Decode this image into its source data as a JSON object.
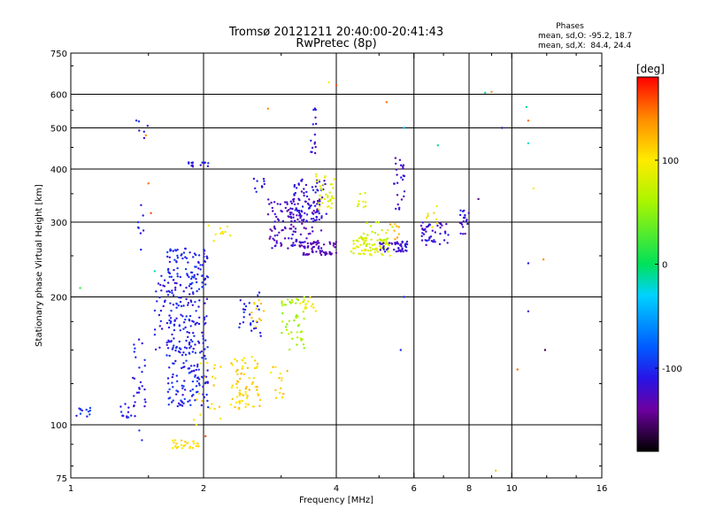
{
  "chart_data": {
    "type": "scatter",
    "title": "Tromsø 20121211 20:40:00-20:41:43",
    "subtitle": "RwPretec (8p)",
    "xlabel": "Frequency [MHz]",
    "ylabel": "Stationary phase Virtual Height [km]",
    "x_scale": "log",
    "y_scale": "log",
    "xlim": [
      1,
      16
    ],
    "ylim": [
      75,
      750
    ],
    "x_ticks": [
      {
        "value": 1,
        "label": "1"
      },
      {
        "value": 2,
        "label": "2"
      },
      {
        "value": 4,
        "label": "4"
      },
      {
        "value": 6,
        "label": "6"
      },
      {
        "value": 8,
        "label": "8"
      },
      {
        "value": 10,
        "label": "10"
      },
      {
        "value": 16,
        "label": "16"
      }
    ],
    "x_gridlines": [
      2,
      4,
      6,
      8,
      10
    ],
    "y_ticks": [
      {
        "value": 75,
        "label": "75"
      },
      {
        "value": 100,
        "label": "100"
      },
      {
        "value": 200,
        "label": "200"
      },
      {
        "value": 300,
        "label": "300"
      },
      {
        "value": 400,
        "label": "400"
      },
      {
        "value": 500,
        "label": "500"
      },
      {
        "value": 600,
        "label": "600"
      },
      {
        "value": 750,
        "label": "750"
      }
    ],
    "y_gridlines": [
      100,
      200,
      300,
      400,
      500,
      600
    ],
    "grid": true,
    "phase_stats": {
      "heading": "Phases",
      "line_o": "mean, sd,O: -95.2, 18.7",
      "line_x": "mean, sd,X:  84.4, 24.4"
    },
    "colorbar": {
      "label": "[deg]",
      "range": [
        -180,
        180
      ],
      "ticks": [
        {
          "value": 100,
          "label": "100"
        },
        {
          "value": 0,
          "label": "0"
        },
        {
          "value": -100,
          "label": "-100"
        }
      ]
    },
    "clusters": [
      {
        "x": [
          1.02,
          1.12
        ],
        "y": [
          104,
          110
        ],
        "phase": -100,
        "n": 12
      },
      {
        "x": [
          1.25,
          1.4
        ],
        "y": [
          104,
          112
        ],
        "phase": -105,
        "n": 14
      },
      {
        "x": [
          1.38,
          1.48
        ],
        "y": [
          110,
          160
        ],
        "phase": -110,
        "n": 25
      },
      {
        "x": [
          1.4,
          1.5
        ],
        "y": [
          470,
          560
        ],
        "phase": -110,
        "n": 6
      },
      {
        "x": [
          1.42,
          1.5
        ],
        "y": [
          240,
          330
        ],
        "phase": -100,
        "n": 8
      },
      {
        "x": [
          1.55,
          1.7
        ],
        "y": [
          150,
          230
        ],
        "phase": -110,
        "n": 30
      },
      {
        "x": [
          1.65,
          2.05
        ],
        "y": [
          110,
          260
        ],
        "phase": -105,
        "n": 320
      },
      {
        "x": [
          1.7,
          1.95
        ],
        "y": [
          88,
          92
        ],
        "phase": 100,
        "n": 30
      },
      {
        "x": [
          1.85,
          2.05
        ],
        "y": [
          405,
          415
        ],
        "phase": -110,
        "n": 14
      },
      {
        "x": [
          1.9,
          2.2
        ],
        "y": [
          100,
          140
        ],
        "phase": 105,
        "n": 20
      },
      {
        "x": [
          2.05,
          2.3
        ],
        "y": [
          270,
          295
        ],
        "phase": 95,
        "n": 10
      },
      {
        "x": [
          2.3,
          2.7
        ],
        "y": [
          108,
          145
        ],
        "phase": 110,
        "n": 70
      },
      {
        "x": [
          2.4,
          2.7
        ],
        "y": [
          160,
          210
        ],
        "phase": -105,
        "n": 25
      },
      {
        "x": [
          2.55,
          2.75
        ],
        "y": [
          165,
          200
        ],
        "phase": 110,
        "n": 12
      },
      {
        "x": [
          2.6,
          2.75
        ],
        "y": [
          350,
          380
        ],
        "phase": -110,
        "n": 10
      },
      {
        "x": [
          2.8,
          3.1
        ],
        "y": [
          115,
          140
        ],
        "phase": 110,
        "n": 15
      },
      {
        "x": [
          3.0,
          3.4
        ],
        "y": [
          150,
          200
        ],
        "phase": 60,
        "n": 45
      },
      {
        "x": [
          3.3,
          3.6
        ],
        "y": [
          185,
          200
        ],
        "phase": 90,
        "n": 15
      },
      {
        "x": [
          2.8,
          3.7
        ],
        "y": [
          260,
          340
        ],
        "phase": -125,
        "n": 140
      },
      {
        "x": [
          3.2,
          3.8
        ],
        "y": [
          300,
          380
        ],
        "phase": -115,
        "n": 70
      },
      {
        "x": [
          3.3,
          4.0
        ],
        "y": [
          250,
          270
        ],
        "phase": -130,
        "n": 60
      },
      {
        "x": [
          3.5,
          3.6
        ],
        "y": [
          420,
          560
        ],
        "phase": -115,
        "n": 15
      },
      {
        "x": [
          3.6,
          4.0
        ],
        "y": [
          320,
          390
        ],
        "phase": 85,
        "n": 35
      },
      {
        "x": [
          4.3,
          5.3
        ],
        "y": [
          250,
          275
        ],
        "phase": 85,
        "n": 70
      },
      {
        "x": [
          4.5,
          5.6
        ],
        "y": [
          260,
          300
        ],
        "phase": 75,
        "n": 30
      },
      {
        "x": [
          5.0,
          5.9
        ],
        "y": [
          255,
          270
        ],
        "phase": -115,
        "n": 45
      },
      {
        "x": [
          5.4,
          5.8
        ],
        "y": [
          320,
          430
        ],
        "phase": -120,
        "n": 25
      },
      {
        "x": [
          5.3,
          5.6
        ],
        "y": [
          270,
          300
        ],
        "phase": 120,
        "n": 8
      },
      {
        "x": [
          6.2,
          7.2
        ],
        "y": [
          265,
          300
        ],
        "phase": -115,
        "n": 45
      },
      {
        "x": [
          6.4,
          6.8
        ],
        "y": [
          290,
          330
        ],
        "phase": 100,
        "n": 8
      },
      {
        "x": [
          7.6,
          8.0
        ],
        "y": [
          280,
          320
        ],
        "phase": -115,
        "n": 20
      },
      {
        "x": [
          4.4,
          4.7
        ],
        "y": [
          325,
          355
        ],
        "phase": 90,
        "n": 10
      }
    ],
    "isolated_points": [
      {
        "x": 1.43,
        "y": 97,
        "phase": -90
      },
      {
        "x": 1.45,
        "y": 92,
        "phase": -100
      },
      {
        "x": 1.5,
        "y": 370,
        "phase": 150
      },
      {
        "x": 1.48,
        "y": 480,
        "phase": 140
      },
      {
        "x": 1.52,
        "y": 315,
        "phase": 160
      },
      {
        "x": 1.55,
        "y": 230,
        "phase": -20
      },
      {
        "x": 1.05,
        "y": 210,
        "phase": 20
      },
      {
        "x": 2.02,
        "y": 94,
        "phase": 160
      },
      {
        "x": 2.8,
        "y": 555,
        "phase": 140
      },
      {
        "x": 3.85,
        "y": 640,
        "phase": 100
      },
      {
        "x": 4.0,
        "y": 630,
        "phase": 160
      },
      {
        "x": 5.2,
        "y": 575,
        "phase": 150
      },
      {
        "x": 5.7,
        "y": 500,
        "phase": -40
      },
      {
        "x": 6.8,
        "y": 455,
        "phase": -10
      },
      {
        "x": 5.7,
        "y": 200,
        "phase": -100
      },
      {
        "x": 5.6,
        "y": 150,
        "phase": -100
      },
      {
        "x": 8.7,
        "y": 605,
        "phase": -10
      },
      {
        "x": 9.0,
        "y": 608,
        "phase": 140
      },
      {
        "x": 9.5,
        "y": 500,
        "phase": -120
      },
      {
        "x": 9.2,
        "y": 78,
        "phase": 120
      },
      {
        "x": 10.3,
        "y": 135,
        "phase": 150
      },
      {
        "x": 10.8,
        "y": 560,
        "phase": -10
      },
      {
        "x": 10.9,
        "y": 520,
        "phase": 150
      },
      {
        "x": 10.9,
        "y": 460,
        "phase": -20
      },
      {
        "x": 10.9,
        "y": 240,
        "phase": -110
      },
      {
        "x": 10.9,
        "y": 185,
        "phase": -120
      },
      {
        "x": 11.2,
        "y": 360,
        "phase": 100
      },
      {
        "x": 11.8,
        "y": 245,
        "phase": 140
      },
      {
        "x": 11.9,
        "y": 150,
        "phase": -160
      },
      {
        "x": 8.4,
        "y": 340,
        "phase": -150
      }
    ]
  }
}
